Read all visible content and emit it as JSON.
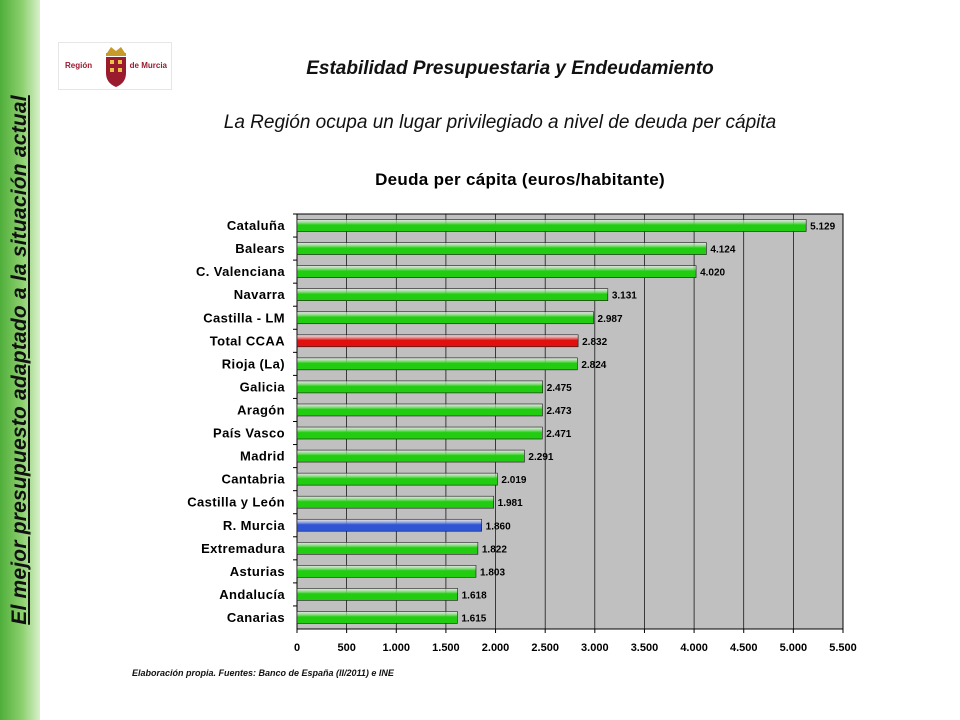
{
  "side_text": "El mejor presupuesto adaptado a la situación actual",
  "logo": {
    "left_text": "Región",
    "right_text": "de Murcia"
  },
  "header": {
    "title": "Estabilidad Presupuestaria y Endeudamiento",
    "subtitle": "La Región ocupa un lugar privilegiado a nivel de deuda per cápita"
  },
  "source_note": "Elaboración propia. Fuentes: Banco de España (II/2011) e INE",
  "colors": {
    "default_bar": "#22cc11",
    "total_bar": "#e01010",
    "murcia_bar": "#2f55d4",
    "plot_bg": "#c0c0c0"
  },
  "chart_data": {
    "type": "bar",
    "orientation": "horizontal",
    "title": "Deuda per cápita (euros/habitante)",
    "xlim": [
      0,
      5500
    ],
    "x_ticks": [
      0,
      500,
      1000,
      1500,
      2000,
      2500,
      3000,
      3500,
      4000,
      4500,
      5000,
      5500
    ],
    "x_tick_labels": [
      "0",
      "500",
      "1.000",
      "1.500",
      "2.000",
      "2.500",
      "3.000",
      "3.500",
      "4.000",
      "4.500",
      "5.000",
      "5.500"
    ],
    "grid": "vertical",
    "categories": [
      "Cataluña",
      "Balears",
      "C. Valenciana",
      "Navarra",
      "Castilla - LM",
      "Total CCAA",
      "Rioja (La)",
      "Galicia",
      "Aragón",
      "País Vasco",
      "Madrid",
      "Cantabria",
      "Castilla y León",
      "R. Murcia",
      "Extremadura",
      "Asturias",
      "Andalucía",
      "Canarias"
    ],
    "values": [
      5129,
      4124,
      4020,
      3131,
      2987,
      2832,
      2824,
      2475,
      2473,
      2471,
      2291,
      2019,
      1981,
      1860,
      1822,
      1803,
      1618,
      1615
    ],
    "value_labels": [
      "5.129",
      "4.124",
      "4.020",
      "3.131",
      "2.987",
      "2.832",
      "2.824",
      "2.475",
      "2.473",
      "2.471",
      "2.291",
      "2.019",
      "1.981",
      "1.860",
      "1.822",
      "1.803",
      "1.618",
      "1.615"
    ],
    "highlight": {
      "Total CCAA": "total_bar",
      "R. Murcia": "murcia_bar"
    }
  }
}
